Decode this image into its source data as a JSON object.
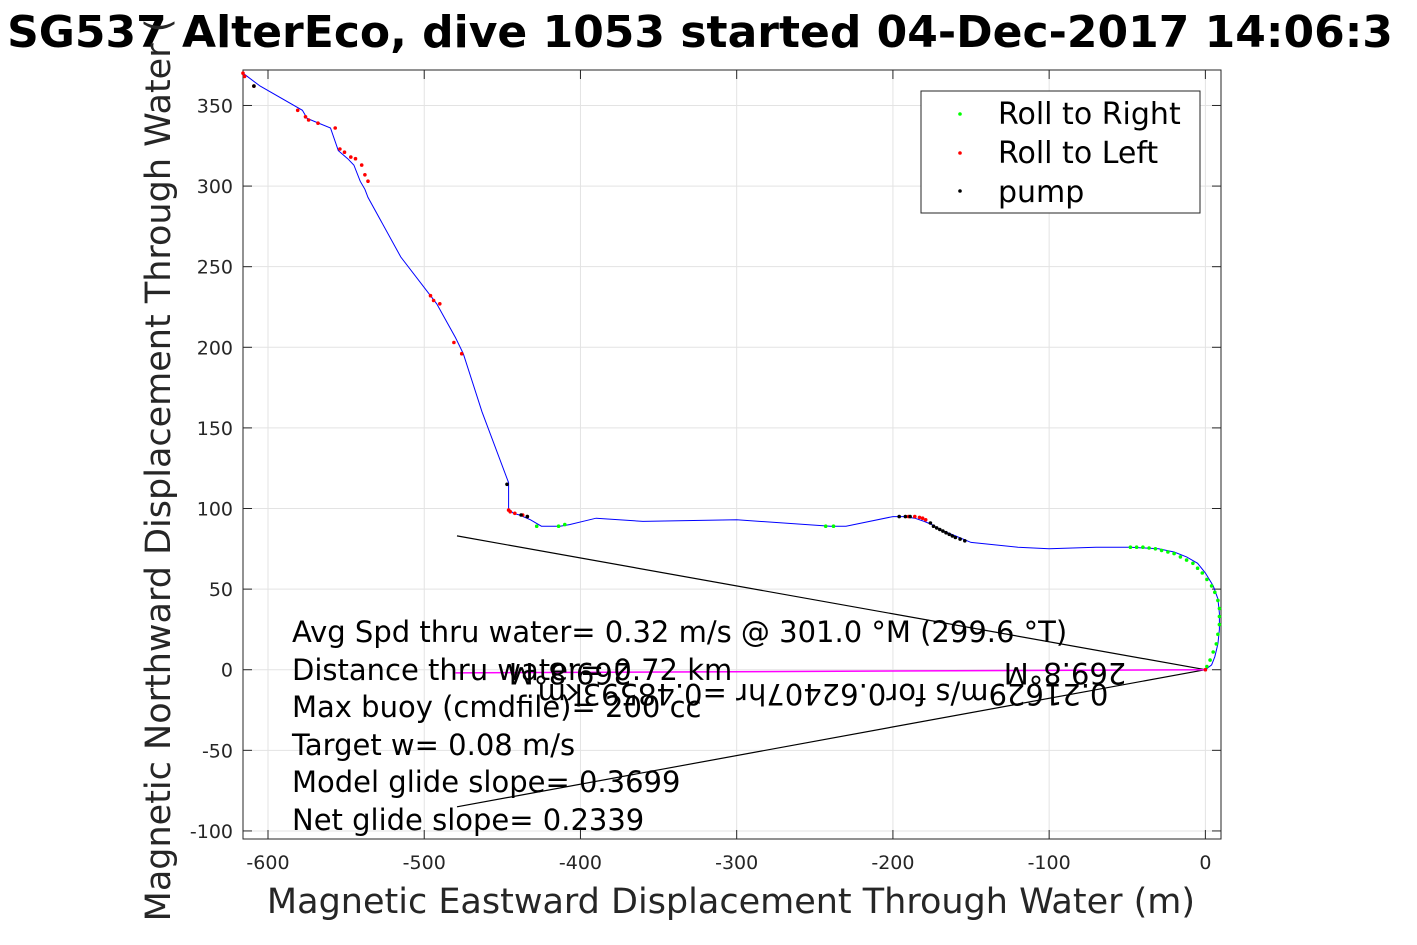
{
  "chart_data": {
    "type": "line",
    "title": "SG537 AlterEco, dive 1053 started 04-Dec-2017 14:06:3",
    "xlabel": "Magnetic Eastward Displacement Through Water (m)",
    "ylabel": "Magnetic Northward Displacement Through Water (",
    "xlim": [
      -616,
      10
    ],
    "ylim": [
      -105,
      372
    ],
    "xticks": [
      -600,
      -500,
      -400,
      -300,
      -200,
      -100,
      0
    ],
    "xtick_labels": [
      "-600",
      "-500",
      "-400",
      "-300",
      "-200",
      "-100",
      "0"
    ],
    "yticks": [
      -100,
      -50,
      0,
      50,
      100,
      150,
      200,
      250,
      300,
      350
    ],
    "ytick_labels": [
      "-100",
      "-50",
      "0",
      "50",
      "100",
      "150",
      "200",
      "250",
      "300",
      "350"
    ],
    "grid": true,
    "legend_position": "top-right",
    "legend": [
      {
        "label": "Roll to Right",
        "color": "#00ff00"
      },
      {
        "label": "Roll to Left",
        "color": "#ff0000"
      },
      {
        "label": "pump",
        "color": "#000000"
      }
    ],
    "track": {
      "color": "#0000ff",
      "x": [
        -616,
        -605,
        -578,
        -575,
        -570,
        -560,
        -555,
        -549,
        -545,
        -541,
        -538,
        -536,
        -515,
        -496,
        -492,
        -480,
        -475,
        -463,
        -446,
        -446,
        -443,
        -439,
        -432,
        -425,
        -413,
        -407,
        -390,
        -360,
        -300,
        -240,
        -230,
        -200,
        -193,
        -186,
        -180,
        -175,
        -170,
        -160,
        -150,
        -120,
        -100,
        -70,
        -48,
        -30,
        -20,
        -12,
        -5,
        0,
        5,
        8,
        9,
        9,
        8,
        6,
        4,
        0
      ],
      "y": [
        370,
        362,
        347,
        342,
        340,
        336,
        322,
        317,
        313,
        303,
        298,
        293,
        256,
        232,
        227,
        206,
        196,
        160,
        116,
        100,
        97,
        96,
        93,
        89,
        89,
        90,
        94,
        92,
        93,
        89,
        89,
        95,
        95,
        94,
        92,
        90,
        87,
        83,
        79,
        76,
        75,
        76,
        76,
        75,
        73,
        70,
        66,
        60,
        52,
        44,
        35,
        25,
        16,
        8,
        3,
        0
      ]
    },
    "roll_right": {
      "color": "#00ff00",
      "x": [
        -428,
        -414,
        -410,
        -243,
        -238,
        -48,
        -44,
        -40,
        -36,
        -32,
        -28,
        -24,
        -20,
        -16,
        -12,
        -8,
        -5,
        -2,
        1,
        4,
        6,
        8,
        9,
        9,
        9,
        8,
        7,
        5,
        3,
        1
      ],
      "y": [
        89,
        89,
        90,
        89,
        89,
        76,
        76,
        76,
        75.5,
        75,
        74,
        73,
        72,
        70,
        68,
        66,
        63,
        60,
        56,
        52,
        48,
        43,
        38,
        33,
        28,
        22,
        16,
        11,
        6,
        2
      ]
    },
    "roll_left": {
      "color": "#ff0000",
      "x": [
        -616,
        -615,
        -609,
        -581,
        -576,
        -574,
        -568,
        -557,
        -554,
        -551,
        -547,
        -544,
        -540,
        -538,
        -536,
        -496,
        -494,
        -490,
        -481,
        -476,
        -446,
        -445,
        -442,
        -437,
        -434,
        -190,
        -186,
        -183,
        -181,
        -179,
        0
      ],
      "y": [
        370,
        368,
        362,
        347,
        343,
        341,
        339,
        336,
        323,
        321,
        318,
        317,
        313,
        307,
        303,
        232,
        229,
        227,
        203,
        196,
        99,
        98,
        97,
        96,
        95,
        95,
        95,
        94.5,
        94,
        93,
        0
      ]
    },
    "pump": {
      "color": "#000000",
      "x": [
        -609,
        -447,
        -438,
        -434,
        -196,
        -192,
        -189,
        -176,
        -174,
        -172,
        -170,
        -168,
        -166,
        -164,
        -162,
        -160,
        -157,
        -154
      ],
      "y": [
        362,
        115,
        96,
        95,
        95,
        95,
        95,
        91,
        89,
        88,
        87,
        86,
        85,
        84,
        83,
        82,
        81,
        80
      ]
    },
    "black_lines": [
      {
        "x": [
          -479,
          0
        ],
        "y": [
          83,
          0
        ]
      },
      {
        "x": [
          -479,
          0
        ],
        "y": [
          -85,
          0
        ]
      }
    ],
    "magenta_line": {
      "color": "#ff00ff",
      "x": [
        -480,
        0
      ],
      "y": [
        -2,
        0
      ]
    },
    "annotations": [
      "Avg Spd thru water=  0.32 m/s @ 301.0 °M (299.6 °T)",
      "Distance thru water= 0.72 km",
      "Max buoy (cmdfile)= 200 cc",
      "Target w= 0.08 m/s",
      "Model glide slope= 0.3699",
      "Net glide slope= 0.2339"
    ],
    "flipped_annotations": [
      "269.8°M",
      "269.8°M",
      "0.21629m/s for0.62407hr =0.48593km"
    ]
  }
}
